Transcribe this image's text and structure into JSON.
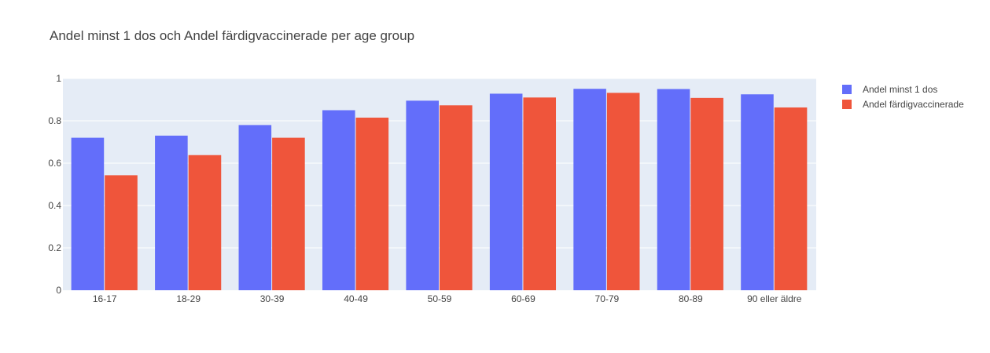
{
  "chart_data": {
    "type": "bar",
    "title": "Andel minst 1 dos och Andel färdigvaccinerade per age group",
    "xlabel": "",
    "ylabel": "",
    "categories": [
      "16-17",
      "18-29",
      "30-39",
      "40-49",
      "50-59",
      "60-69",
      "70-79",
      "80-89",
      "90 eller äldre"
    ],
    "series": [
      {
        "name": "Andel minst 1 dos",
        "color": "#636efa",
        "values": [
          0.72,
          0.73,
          0.78,
          0.85,
          0.895,
          0.928,
          0.951,
          0.95,
          0.925
        ]
      },
      {
        "name": "Andel färdigvaccinerade",
        "color": "#ef553b",
        "values": [
          0.543,
          0.638,
          0.72,
          0.815,
          0.873,
          0.91,
          0.932,
          0.908,
          0.863
        ]
      }
    ],
    "ylim": [
      0,
      1
    ],
    "yticks": [
      "0",
      "0.2",
      "0.4",
      "0.6",
      "0.8",
      "1"
    ],
    "ytick_values": [
      0,
      0.2,
      0.4,
      0.6,
      0.8,
      1
    ],
    "grid": true,
    "legend_position": "top-right",
    "plot_background": "#e5ecf6"
  }
}
